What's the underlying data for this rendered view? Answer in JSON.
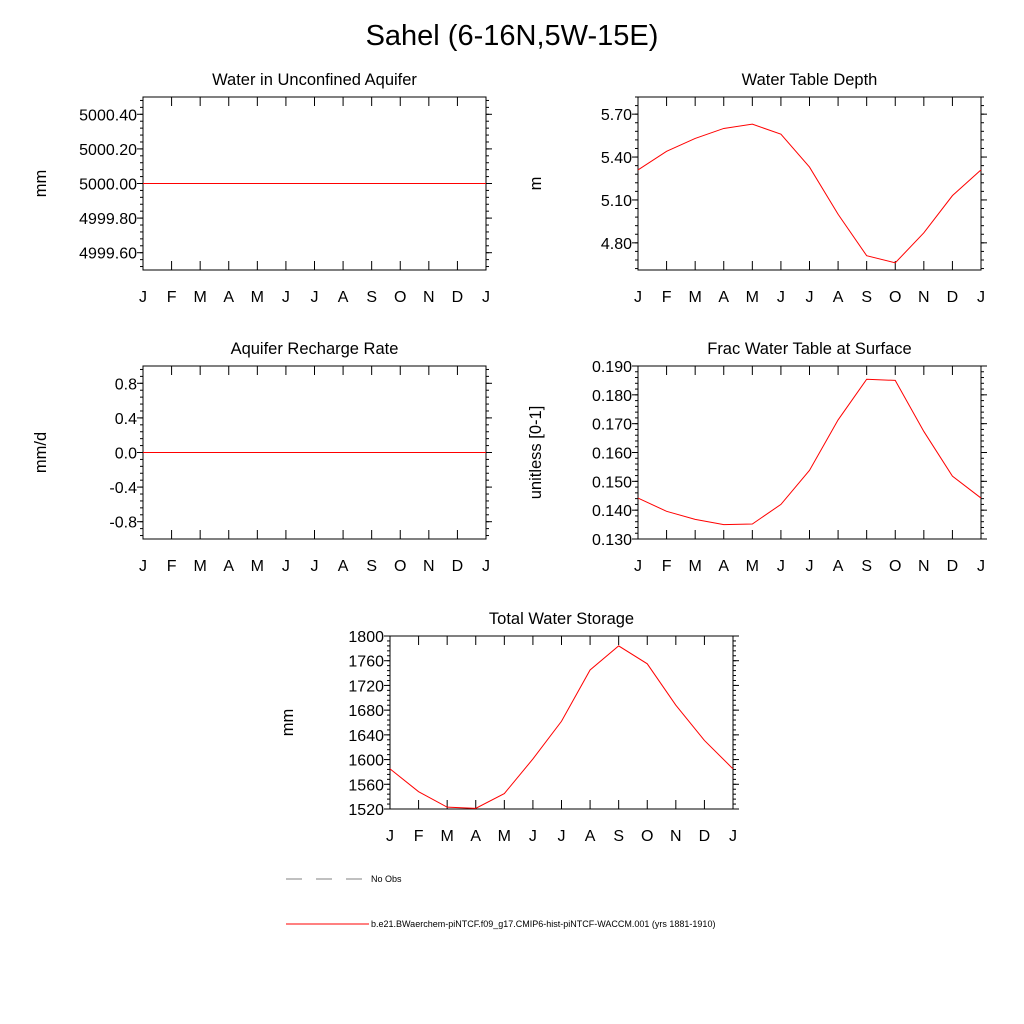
{
  "figure_title": "Sahel (6-16N,5W-15E)",
  "chart_data": [
    {
      "type": "line",
      "title": "Water in Unconfined Aquifer",
      "xlabel": "",
      "ylabel": "mm",
      "categories": [
        "J",
        "F",
        "M",
        "A",
        "M",
        "J",
        "J",
        "A",
        "S",
        "O",
        "N",
        "D",
        "J"
      ],
      "ylim": [
        4999.5,
        5000.5
      ],
      "yticks": [
        4999.6,
        4999.8,
        5000.0,
        5000.2,
        5000.4
      ],
      "ytick_labels": [
        "4999.60",
        "4999.80",
        "5000.00",
        "5000.20",
        "5000.40"
      ],
      "series": [
        {
          "values": [
            5000,
            5000,
            5000,
            5000,
            5000,
            5000,
            5000,
            5000,
            5000,
            5000,
            5000,
            5000,
            5000
          ]
        }
      ]
    },
    {
      "type": "line",
      "title": "Water Table Depth",
      "xlabel": "",
      "ylabel": "m",
      "categories": [
        "J",
        "F",
        "M",
        "A",
        "M",
        "J",
        "J",
        "A",
        "S",
        "O",
        "N",
        "D",
        "J"
      ],
      "ylim": [
        4.61,
        5.82
      ],
      "yticks": [
        4.8,
        5.1,
        5.4,
        5.7
      ],
      "ytick_labels": [
        "4.80",
        "5.10",
        "5.40",
        "5.70"
      ],
      "series": [
        {
          "values": [
            5.31,
            5.44,
            5.53,
            5.6,
            5.63,
            5.56,
            5.33,
            5.0,
            4.71,
            4.66,
            4.87,
            5.13,
            5.31
          ]
        }
      ]
    },
    {
      "type": "line",
      "title": "Aquifer Recharge Rate",
      "xlabel": "",
      "ylabel": "mm/d",
      "categories": [
        "J",
        "F",
        "M",
        "A",
        "M",
        "J",
        "J",
        "A",
        "S",
        "O",
        "N",
        "D",
        "J"
      ],
      "ylim": [
        -1.0,
        1.0
      ],
      "yticks": [
        -0.8,
        -0.4,
        0.0,
        0.4,
        0.8
      ],
      "ytick_labels": [
        "-0.8",
        "-0.4",
        "0.0",
        "0.4",
        "0.8"
      ],
      "series": [
        {
          "values": [
            0,
            0,
            0,
            0,
            0,
            0,
            0,
            0,
            0,
            0,
            0,
            0,
            0
          ]
        }
      ]
    },
    {
      "type": "line",
      "title": "Frac Water Table at Surface",
      "xlabel": "",
      "ylabel": "unitless [0-1]",
      "categories": [
        "J",
        "F",
        "M",
        "A",
        "M",
        "J",
        "J",
        "A",
        "S",
        "O",
        "N",
        "D",
        "J"
      ],
      "ylim": [
        0.13,
        0.19
      ],
      "yticks": [
        0.13,
        0.14,
        0.15,
        0.16,
        0.17,
        0.18,
        0.19
      ],
      "ytick_labels": [
        "0.130",
        "0.140",
        "0.150",
        "0.160",
        "0.170",
        "0.180",
        "0.190"
      ],
      "series": [
        {
          "values": [
            0.1442,
            0.1396,
            0.1368,
            0.135,
            0.1352,
            0.142,
            0.1538,
            0.1713,
            0.1854,
            0.185,
            0.1673,
            0.1518,
            0.1442
          ]
        }
      ]
    },
    {
      "type": "line",
      "title": "Total Water Storage",
      "xlabel": "",
      "ylabel": "mm",
      "categories": [
        "J",
        "F",
        "M",
        "A",
        "M",
        "J",
        "J",
        "A",
        "S",
        "O",
        "N",
        "D",
        "J"
      ],
      "ylim": [
        1520,
        1800
      ],
      "yticks": [
        1520,
        1560,
        1600,
        1640,
        1680,
        1720,
        1760,
        1800
      ],
      "ytick_labels": [
        "1520",
        "1560",
        "1600",
        "1640",
        "1680",
        "1720",
        "1760",
        "1800"
      ],
      "series": [
        {
          "values": [
            1585,
            1548,
            1523,
            1521,
            1545,
            1601,
            1662,
            1745,
            1784,
            1755,
            1688,
            1631,
            1585
          ]
        }
      ]
    }
  ],
  "legend": {
    "obs_label": "No Obs",
    "model_label": "b.e21.BWaerchem-piNTCF.f09_g17.CMIP6-hist-piNTCF-WACCM.001 (yrs 1881-1910)"
  },
  "colors": {
    "model_line": "#ff0000",
    "obs_line": "#808080",
    "axis": "#000000"
  }
}
